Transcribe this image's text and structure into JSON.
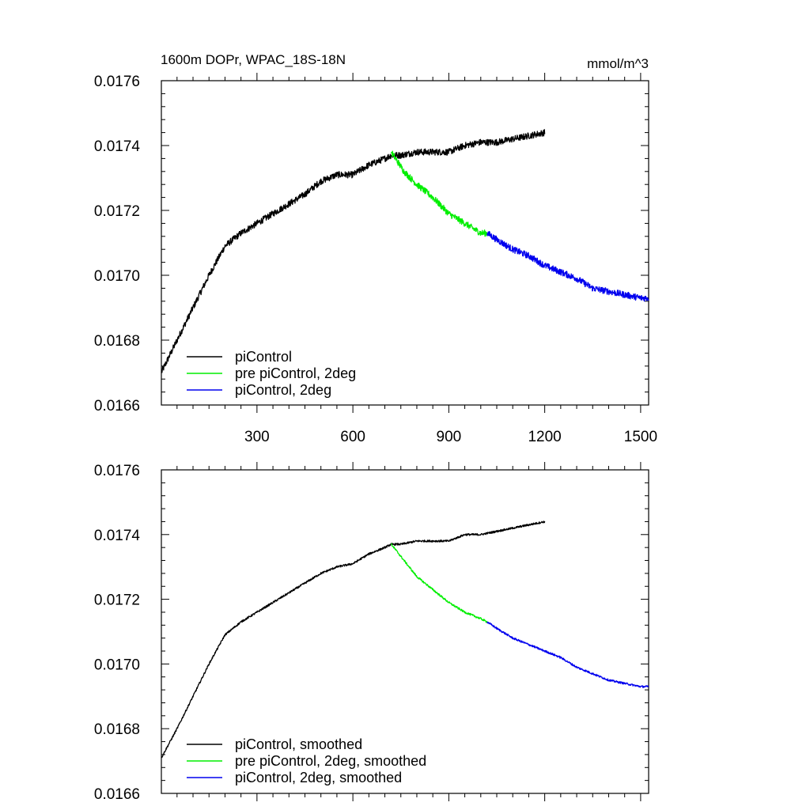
{
  "header": {
    "title": "1600m DOPr, WPAC_18S-18N",
    "units": "mmol/m^3"
  },
  "colors": {
    "piControl": "#000000",
    "pre": "#00ee00",
    "twodeg": "#0000ee"
  },
  "chart_data": [
    {
      "type": "line",
      "title": "1600m DOPr, WPAC_18S-18N",
      "units": "mmol/m^3",
      "xlim": [
        1,
        1525
      ],
      "ylim": [
        0.0166,
        0.0176
      ],
      "xticks": [
        300,
        600,
        900,
        1200,
        1500
      ],
      "xtick_labels": [
        "300",
        "600",
        "900",
        "1200",
        "1500"
      ],
      "yticks": [
        0.0166,
        0.0168,
        0.017,
        0.0172,
        0.0174,
        0.0176
      ],
      "ytick_labels": [
        "0.0166",
        "0.0168",
        "0.0170",
        "0.0172",
        "0.0174",
        "0.0176"
      ],
      "noise": 1e-05,
      "legend": "bottom-left",
      "series": [
        {
          "key": "piControl",
          "name": "piControl",
          "x": [
            1,
            50,
            100,
            150,
            200,
            250,
            300,
            350,
            400,
            450,
            500,
            550,
            600,
            650,
            700,
            720,
            750,
            800,
            850,
            900,
            950,
            1000,
            1050,
            1100,
            1150,
            1200
          ],
          "y": [
            0.0167,
            0.0168,
            0.0169,
            0.017,
            0.01709,
            0.01713,
            0.01716,
            0.01719,
            0.01722,
            0.01725,
            0.01729,
            0.01731,
            0.01731,
            0.01734,
            0.01736,
            0.01737,
            0.01737,
            0.01738,
            0.01738,
            0.01738,
            0.0174,
            0.01741,
            0.01741,
            0.01742,
            0.01743,
            0.01744
          ]
        },
        {
          "key": "pre",
          "name": "pre piControl, 2deg",
          "x": [
            720,
            760,
            800,
            850,
            900,
            950,
            1000,
            1020
          ],
          "y": [
            0.01738,
            0.01732,
            0.01728,
            0.01724,
            0.01719,
            0.01716,
            0.01713,
            0.01713
          ]
        },
        {
          "key": "twodeg",
          "name": "piControl, 2deg",
          "x": [
            1020,
            1050,
            1100,
            1150,
            1200,
            1250,
            1300,
            1350,
            1400,
            1450,
            1500,
            1525
          ],
          "y": [
            0.01713,
            0.01711,
            0.01708,
            0.01706,
            0.01703,
            0.01701,
            0.01699,
            0.01696,
            0.01695,
            0.01694,
            0.01693,
            0.01693
          ]
        }
      ]
    },
    {
      "type": "line",
      "title": "",
      "xlim": [
        1,
        1525
      ],
      "ylim": [
        0.0166,
        0.0176
      ],
      "xticks": [
        300,
        600,
        900,
        1200,
        1500
      ],
      "xtick_labels": [],
      "yticks": [
        0.0166,
        0.0168,
        0.017,
        0.0172,
        0.0174,
        0.0176
      ],
      "ytick_labels": [
        "0.0166",
        "0.0168",
        "0.0170",
        "0.0172",
        "0.0174",
        "0.0176"
      ],
      "noise": 3e-06,
      "legend": "bottom-left",
      "series": [
        {
          "key": "piControl",
          "name": "piControl, smoothed",
          "x": [
            1,
            50,
            100,
            150,
            200,
            250,
            300,
            350,
            400,
            450,
            500,
            550,
            600,
            650,
            700,
            720,
            750,
            800,
            850,
            900,
            950,
            1000,
            1050,
            1100,
            1150,
            1200
          ],
          "y": [
            0.01671,
            0.0168,
            0.0169,
            0.017,
            0.01709,
            0.01713,
            0.01716,
            0.01719,
            0.01722,
            0.01725,
            0.01728,
            0.0173,
            0.01731,
            0.01734,
            0.01736,
            0.01737,
            0.01737,
            0.01738,
            0.01738,
            0.01738,
            0.0174,
            0.0174,
            0.01741,
            0.01742,
            0.01743,
            0.01744
          ]
        },
        {
          "key": "pre",
          "name": "pre piControl, 2deg, smoothed",
          "x": [
            720,
            760,
            800,
            850,
            900,
            950,
            1000,
            1020
          ],
          "y": [
            0.01737,
            0.01732,
            0.01727,
            0.01723,
            0.01719,
            0.01716,
            0.01714,
            0.01713
          ]
        },
        {
          "key": "twodeg",
          "name": "piControl, 2deg, smoothed",
          "x": [
            1020,
            1050,
            1100,
            1150,
            1200,
            1250,
            1300,
            1350,
            1400,
            1450,
            1500,
            1525
          ],
          "y": [
            0.01713,
            0.01711,
            0.01708,
            0.01706,
            0.01704,
            0.01702,
            0.01699,
            0.01697,
            0.01695,
            0.01694,
            0.01693,
            0.01693
          ]
        }
      ]
    }
  ]
}
